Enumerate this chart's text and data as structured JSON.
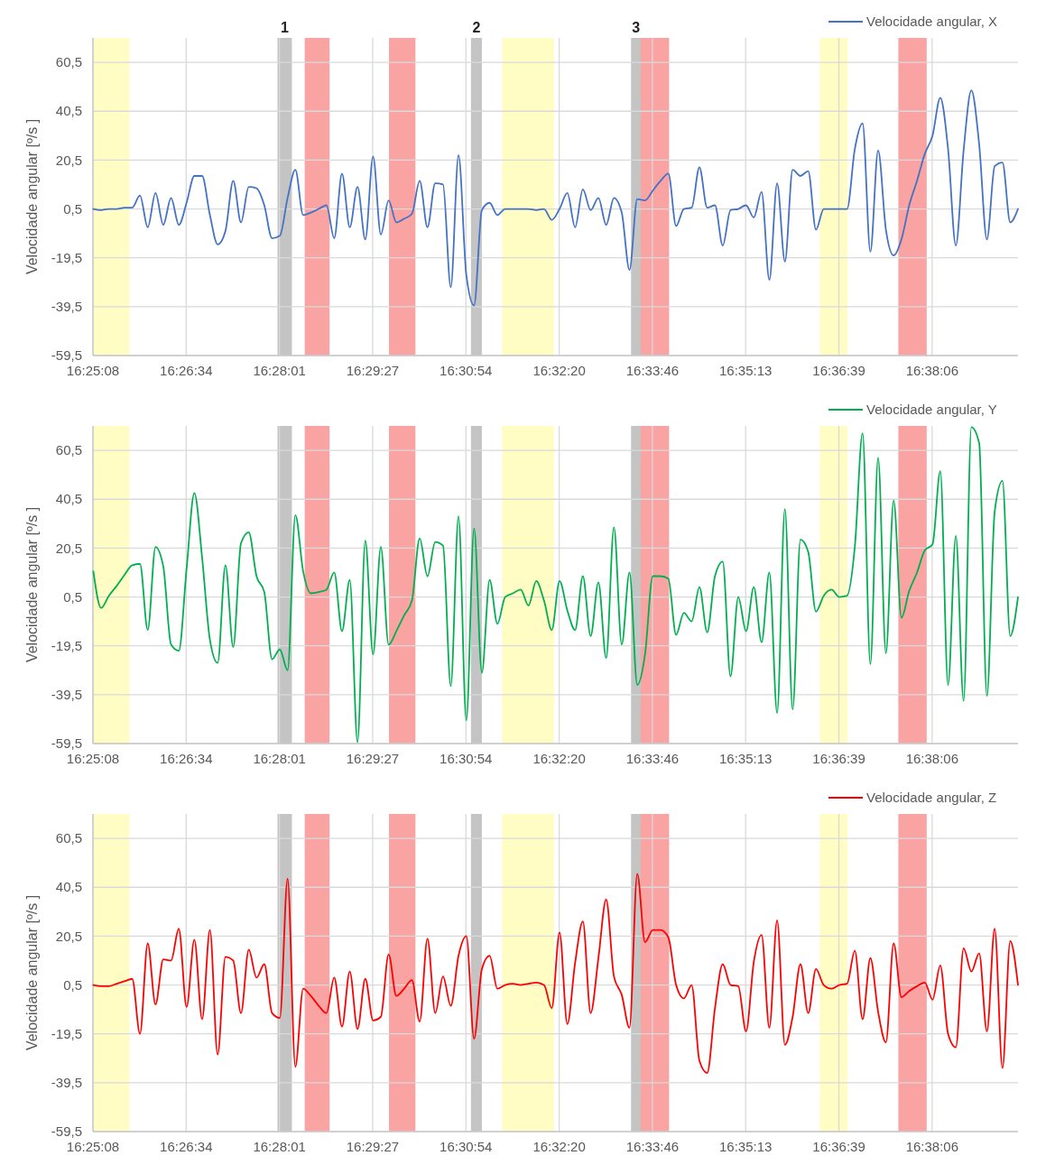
{
  "chart_data": [
    {
      "type": "line",
      "ylabel": "Velocidade angular [º/s ]",
      "grid": true,
      "legend": "top right",
      "xlim": [
        16.4189,
        16.657
      ],
      "ylim": [
        -59.5,
        70.5
      ],
      "xticks": [
        {
          "value": 16.4189,
          "label": "16:25:08"
        },
        {
          "value": 16.4429,
          "label": "16:26:34"
        },
        {
          "value": 16.4669,
          "label": "16:28:01"
        },
        {
          "value": 16.4909,
          "label": "16:29:27"
        },
        {
          "value": 16.5149,
          "label": "16:30:54"
        },
        {
          "value": 16.5389,
          "label": "16:32:20"
        },
        {
          "value": 16.5629,
          "label": "16:33:46"
        },
        {
          "value": 16.5869,
          "label": "16:35:13"
        },
        {
          "value": 16.6109,
          "label": "16:36:39"
        },
        {
          "value": 16.6349,
          "label": "16:38:06"
        }
      ],
      "yticks": [
        {
          "value": -59.5,
          "label": "-59,5"
        },
        {
          "value": -39.5,
          "label": "-39,5"
        },
        {
          "value": -19.5,
          "label": "-19,5"
        },
        {
          "value": 0.5,
          "label": "0,5"
        },
        {
          "value": 20.5,
          "label": "20,5"
        },
        {
          "value": 40.5,
          "label": "40,5"
        },
        {
          "value": 60.5,
          "label": "60,5"
        }
      ],
      "bands": [
        {
          "axis": "x",
          "from": 16.4189,
          "to": 16.4283,
          "color": "#fffcc4"
        },
        {
          "axis": "x",
          "from": 16.4664,
          "to": 16.4701,
          "color": "#c4c4c4",
          "label": "1"
        },
        {
          "axis": "x",
          "from": 16.4734,
          "to": 16.4798,
          "color": "#f9a3a3"
        },
        {
          "axis": "x",
          "from": 16.4951,
          "to": 16.5019,
          "color": "#f9a3a3"
        },
        {
          "axis": "x",
          "from": 16.5162,
          "to": 16.519,
          "color": "#c4c4c4",
          "label": "2"
        },
        {
          "axis": "x",
          "from": 16.5242,
          "to": 16.5376,
          "color": "#fffcc4"
        },
        {
          "axis": "x",
          "from": 16.5574,
          "to": 16.5599,
          "color": "#c4c4c4",
          "label": "3"
        },
        {
          "axis": "x",
          "from": 16.5599,
          "to": 16.5672,
          "color": "#f9a3a3"
        },
        {
          "axis": "x",
          "from": 16.606,
          "to": 16.6131,
          "color": "#fffcc4"
        },
        {
          "axis": "x",
          "from": 16.6262,
          "to": 16.6335,
          "color": "#f9a3a3"
        }
      ],
      "x": [
        16.419,
        16.421,
        16.423,
        16.425,
        16.427,
        16.429,
        16.431,
        16.433,
        16.435,
        16.437,
        16.439,
        16.441,
        16.443,
        16.445,
        16.447,
        16.449,
        16.451,
        16.453,
        16.455,
        16.457,
        16.459,
        16.461,
        16.463,
        16.465,
        16.467,
        16.469,
        16.471,
        16.473,
        16.475,
        16.477,
        16.479,
        16.481,
        16.483,
        16.485,
        16.487,
        16.489,
        16.491,
        16.493,
        16.495,
        16.497,
        16.499,
        16.501,
        16.503,
        16.505,
        16.507,
        16.509,
        16.511,
        16.513,
        16.515,
        16.517,
        16.519,
        16.521,
        16.523,
        16.525,
        16.527,
        16.529,
        16.531,
        16.533,
        16.535,
        16.537,
        16.539,
        16.541,
        16.543,
        16.545,
        16.547,
        16.549,
        16.551,
        16.553,
        16.555,
        16.557,
        16.559,
        16.561,
        16.563,
        16.565,
        16.567,
        16.569,
        16.571,
        16.573,
        16.575,
        16.577,
        16.579,
        16.581,
        16.583,
        16.585,
        16.587,
        16.589,
        16.591,
        16.593,
        16.595,
        16.597,
        16.599,
        16.601,
        16.603,
        16.605,
        16.607,
        16.609,
        16.611,
        16.613,
        16.615,
        16.617,
        16.619,
        16.621,
        16.623,
        16.625,
        16.627,
        16.629,
        16.631,
        16.633,
        16.635,
        16.637,
        16.639,
        16.641,
        16.643,
        16.645,
        16.647,
        16.649,
        16.651,
        16.653,
        16.655,
        16.657
      ],
      "series": [
        {
          "name": "Velocidade angular, X",
          "color": "#4472c4",
          "values": [
            0.5,
            0,
            0.5,
            0.5,
            1,
            1,
            6,
            -7,
            7,
            -6,
            5,
            -6,
            3,
            14,
            14,
            -2,
            -14,
            -8.5,
            12,
            -5,
            9.5,
            9,
            2,
            -11.5,
            -10.5,
            5,
            16.5,
            -2,
            -1,
            0.5,
            2,
            -11.5,
            15,
            -7,
            9.5,
            -12,
            22,
            -10,
            4,
            -5,
            -3.5,
            -1.5,
            12,
            -7,
            11,
            10.5,
            -31.5,
            22.5,
            -26.5,
            -39,
            0,
            3,
            -2,
            0.5,
            0.5,
            0.5,
            0.5,
            0,
            0.5,
            -4,
            0.5,
            7,
            -7,
            8.5,
            0,
            5,
            -6,
            5,
            -1,
            -24.5,
            4.5,
            4,
            8,
            12,
            15,
            -6.5,
            0.5,
            1,
            17.5,
            1,
            2,
            -14.5,
            0,
            0.5,
            2,
            -3,
            7.5,
            -28.5,
            11,
            -21,
            16.5,
            14,
            16,
            -8,
            0.5,
            0.5,
            0.5,
            0.5,
            25,
            35.5,
            -17,
            24.5,
            -8,
            -18.5,
            -12,
            2,
            12,
            23,
            30.5,
            46,
            25,
            -14.5,
            24.5,
            49,
            27,
            -12,
            18,
            19.5,
            -5,
            0.5
          ]
        }
      ]
    },
    {
      "type": "line",
      "ylabel": "Velocidade angular [º/s ]",
      "grid": true,
      "legend": "top right",
      "xlim": [
        16.4189,
        16.657
      ],
      "ylim": [
        -59.5,
        70.5
      ],
      "xticks": [
        {
          "value": 16.4189,
          "label": "16:25:08"
        },
        {
          "value": 16.4429,
          "label": "16:26:34"
        },
        {
          "value": 16.4669,
          "label": "16:28:01"
        },
        {
          "value": 16.4909,
          "label": "16:29:27"
        },
        {
          "value": 16.5149,
          "label": "16:30:54"
        },
        {
          "value": 16.5389,
          "label": "16:32:20"
        },
        {
          "value": 16.5629,
          "label": "16:33:46"
        },
        {
          "value": 16.5869,
          "label": "16:35:13"
        },
        {
          "value": 16.6109,
          "label": "16:36:39"
        },
        {
          "value": 16.6349,
          "label": "16:38:06"
        }
      ],
      "yticks": [
        {
          "value": -59.5,
          "label": "-59,5"
        },
        {
          "value": -39.5,
          "label": "-39,5"
        },
        {
          "value": -19.5,
          "label": "-19,5"
        },
        {
          "value": 0.5,
          "label": "0,5"
        },
        {
          "value": 20.5,
          "label": "20,5"
        },
        {
          "value": 40.5,
          "label": "40,5"
        },
        {
          "value": 60.5,
          "label": "60,5"
        }
      ],
      "bands": [
        {
          "axis": "x",
          "from": 16.4189,
          "to": 16.4283,
          "color": "#fffcc4"
        },
        {
          "axis": "x",
          "from": 16.4664,
          "to": 16.4701,
          "color": "#c4c4c4"
        },
        {
          "axis": "x",
          "from": 16.4734,
          "to": 16.4798,
          "color": "#f9a3a3"
        },
        {
          "axis": "x",
          "from": 16.4951,
          "to": 16.5019,
          "color": "#f9a3a3"
        },
        {
          "axis": "x",
          "from": 16.5162,
          "to": 16.519,
          "color": "#c4c4c4"
        },
        {
          "axis": "x",
          "from": 16.5242,
          "to": 16.5376,
          "color": "#fffcc4"
        },
        {
          "axis": "x",
          "from": 16.5574,
          "to": 16.5599,
          "color": "#c4c4c4"
        },
        {
          "axis": "x",
          "from": 16.5599,
          "to": 16.5672,
          "color": "#f9a3a3"
        },
        {
          "axis": "x",
          "from": 16.606,
          "to": 16.6131,
          "color": "#fffcc4"
        },
        {
          "axis": "x",
          "from": 16.6262,
          "to": 16.6335,
          "color": "#f9a3a3"
        }
      ],
      "x": [
        16.419,
        16.421,
        16.423,
        16.425,
        16.427,
        16.429,
        16.431,
        16.433,
        16.435,
        16.437,
        16.439,
        16.441,
        16.443,
        16.445,
        16.447,
        16.449,
        16.451,
        16.453,
        16.455,
        16.457,
        16.459,
        16.461,
        16.463,
        16.465,
        16.467,
        16.469,
        16.471,
        16.473,
        16.475,
        16.477,
        16.479,
        16.481,
        16.483,
        16.485,
        16.487,
        16.489,
        16.491,
        16.493,
        16.495,
        16.497,
        16.499,
        16.501,
        16.503,
        16.505,
        16.507,
        16.509,
        16.511,
        16.513,
        16.515,
        16.517,
        16.519,
        16.521,
        16.523,
        16.525,
        16.527,
        16.529,
        16.531,
        16.533,
        16.535,
        16.537,
        16.539,
        16.541,
        16.543,
        16.545,
        16.547,
        16.549,
        16.551,
        16.553,
        16.555,
        16.557,
        16.559,
        16.561,
        16.563,
        16.565,
        16.567,
        16.569,
        16.571,
        16.573,
        16.575,
        16.577,
        16.579,
        16.581,
        16.583,
        16.585,
        16.587,
        16.589,
        16.591,
        16.593,
        16.595,
        16.597,
        16.599,
        16.601,
        16.603,
        16.605,
        16.607,
        16.609,
        16.611,
        16.613,
        16.615,
        16.617,
        16.619,
        16.621,
        16.623,
        16.625,
        16.627,
        16.629,
        16.631,
        16.633,
        16.635,
        16.637,
        16.639,
        16.641,
        16.643,
        16.645,
        16.647,
        16.649,
        16.651,
        16.653,
        16.655,
        16.657
      ],
      "series": [
        {
          "name": "Velocidade angular, Y",
          "color": "#00b050",
          "values": [
            11,
            -4,
            1,
            5,
            9.5,
            13.5,
            14,
            -13,
            21,
            13,
            -19,
            -21.5,
            12,
            43,
            16.5,
            -17,
            -26.5,
            13.5,
            -20,
            22.5,
            27,
            9,
            2.5,
            -25,
            -21,
            -29.5,
            34,
            11,
            2,
            2.5,
            3.5,
            10.5,
            -13.5,
            7.5,
            -59,
            23.5,
            -23,
            21,
            -19,
            -13.5,
            -7,
            -1,
            24.5,
            9,
            23,
            21.5,
            -36,
            33.5,
            -50,
            28.5,
            -30.5,
            7.5,
            -10.5,
            0.5,
            2,
            3.5,
            -3,
            7,
            -1,
            -13,
            7,
            -5,
            -13,
            9,
            -15.5,
            6.5,
            -24.5,
            29,
            -19,
            10.5,
            -35.5,
            -23,
            9,
            9,
            8,
            -15,
            -6,
            -9.5,
            4.5,
            -14,
            9,
            15,
            -32,
            0.5,
            -13.5,
            4.5,
            -18,
            10.5,
            -47,
            36.5,
            -45.5,
            24,
            19,
            -5.5,
            1,
            3.5,
            0.5,
            1,
            21,
            67.5,
            -27,
            57.5,
            -22.5,
            40,
            -8,
            3,
            10.5,
            19.5,
            22,
            52,
            -35.5,
            25.5,
            -42,
            70,
            63.5,
            -40,
            35.5,
            48,
            -15.5,
            0.5
          ]
        }
      ]
    },
    {
      "type": "line",
      "ylabel": "Velocidade angular [º/s ]",
      "grid": true,
      "legend": "top right",
      "xlim": [
        16.4189,
        16.657
      ],
      "ylim": [
        -59.5,
        70.5
      ],
      "xticks": [
        {
          "value": 16.4189,
          "label": "16:25:08"
        },
        {
          "value": 16.4429,
          "label": "16:26:34"
        },
        {
          "value": 16.4669,
          "label": "16:28:01"
        },
        {
          "value": 16.4909,
          "label": "16:29:27"
        },
        {
          "value": 16.5149,
          "label": "16:30:54"
        },
        {
          "value": 16.5389,
          "label": "16:32:20"
        },
        {
          "value": 16.5629,
          "label": "16:33:46"
        },
        {
          "value": 16.5869,
          "label": "16:35:13"
        },
        {
          "value": 16.6109,
          "label": "16:36:39"
        },
        {
          "value": 16.6349,
          "label": "16:38:06"
        }
      ],
      "yticks": [
        {
          "value": -59.5,
          "label": "-59,5"
        },
        {
          "value": -39.5,
          "label": "-39,5"
        },
        {
          "value": -19.5,
          "label": "-19,5"
        },
        {
          "value": 0.5,
          "label": "0,5"
        },
        {
          "value": 20.5,
          "label": "20,5"
        },
        {
          "value": 40.5,
          "label": "40,5"
        },
        {
          "value": 60.5,
          "label": "60,5"
        }
      ],
      "bands": [
        {
          "axis": "x",
          "from": 16.4189,
          "to": 16.4283,
          "color": "#fffcc4"
        },
        {
          "axis": "x",
          "from": 16.4664,
          "to": 16.4701,
          "color": "#c4c4c4"
        },
        {
          "axis": "x",
          "from": 16.4734,
          "to": 16.4798,
          "color": "#f9a3a3"
        },
        {
          "axis": "x",
          "from": 16.4951,
          "to": 16.5019,
          "color": "#f9a3a3"
        },
        {
          "axis": "x",
          "from": 16.5162,
          "to": 16.519,
          "color": "#c4c4c4"
        },
        {
          "axis": "x",
          "from": 16.5242,
          "to": 16.5376,
          "color": "#fffcc4"
        },
        {
          "axis": "x",
          "from": 16.5574,
          "to": 16.5599,
          "color": "#c4c4c4"
        },
        {
          "axis": "x",
          "from": 16.5599,
          "to": 16.5672,
          "color": "#f9a3a3"
        },
        {
          "axis": "x",
          "from": 16.606,
          "to": 16.6131,
          "color": "#fffcc4"
        },
        {
          "axis": "x",
          "from": 16.6262,
          "to": 16.6335,
          "color": "#f9a3a3"
        }
      ],
      "x": [
        16.419,
        16.421,
        16.423,
        16.425,
        16.427,
        16.429,
        16.431,
        16.433,
        16.435,
        16.437,
        16.439,
        16.441,
        16.443,
        16.445,
        16.447,
        16.449,
        16.451,
        16.453,
        16.455,
        16.457,
        16.459,
        16.461,
        16.463,
        16.465,
        16.467,
        16.469,
        16.471,
        16.473,
        16.475,
        16.477,
        16.479,
        16.481,
        16.483,
        16.485,
        16.487,
        16.489,
        16.491,
        16.493,
        16.495,
        16.497,
        16.499,
        16.501,
        16.503,
        16.505,
        16.507,
        16.509,
        16.511,
        16.513,
        16.515,
        16.517,
        16.519,
        16.521,
        16.523,
        16.525,
        16.527,
        16.529,
        16.531,
        16.533,
        16.535,
        16.537,
        16.539,
        16.541,
        16.543,
        16.545,
        16.547,
        16.549,
        16.551,
        16.553,
        16.555,
        16.557,
        16.559,
        16.561,
        16.563,
        16.565,
        16.567,
        16.569,
        16.571,
        16.573,
        16.575,
        16.577,
        16.579,
        16.581,
        16.583,
        16.585,
        16.587,
        16.589,
        16.591,
        16.593,
        16.595,
        16.597,
        16.599,
        16.601,
        16.603,
        16.605,
        16.607,
        16.609,
        16.611,
        16.613,
        16.615,
        16.617,
        16.619,
        16.621,
        16.623,
        16.625,
        16.627,
        16.629,
        16.631,
        16.633,
        16.635,
        16.637,
        16.639,
        16.641,
        16.643,
        16.645,
        16.647,
        16.649,
        16.651,
        16.653,
        16.655,
        16.657
      ],
      "series": [
        {
          "name": "Velocidade angular, Z",
          "color": "#ff0000",
          "values": [
            0.5,
            0,
            0,
            1,
            2,
            3,
            -19.5,
            17.5,
            -7.5,
            11,
            10.5,
            23.5,
            -8.5,
            19,
            -13.5,
            23,
            -28,
            12,
            10.5,
            -11,
            15,
            3.5,
            9,
            -11,
            -13,
            44,
            -33,
            -1,
            -4,
            -8,
            -11,
            3.5,
            -16.5,
            6,
            -17.5,
            3,
            -14,
            -12.5,
            13,
            -4,
            -1,
            2.5,
            -14.5,
            19.5,
            -11,
            4,
            -8,
            12.5,
            20.5,
            -21.5,
            7,
            12.5,
            -1,
            0.5,
            1,
            0.5,
            1,
            1.5,
            0.5,
            -9,
            22,
            -15.5,
            9.5,
            26.5,
            -11,
            11.5,
            35.5,
            4,
            -3.5,
            -17,
            46,
            18,
            23,
            23,
            20,
            0.5,
            -5,
            0.5,
            -30.5,
            -35.5,
            -9,
            9,
            0.5,
            0,
            -18.5,
            10,
            21,
            -17,
            27,
            -24,
            -12.5,
            9,
            -11,
            7,
            0.5,
            -1,
            0.5,
            1,
            14.5,
            -13.5,
            11.5,
            -10.5,
            -23,
            17.5,
            -4.5,
            -2,
            0,
            1.5,
            -5.5,
            8.5,
            -19.5,
            -25,
            15.5,
            6,
            13.5,
            -18.5,
            23.5,
            -33.5,
            18.5,
            0.5
          ]
        }
      ]
    }
  ]
}
